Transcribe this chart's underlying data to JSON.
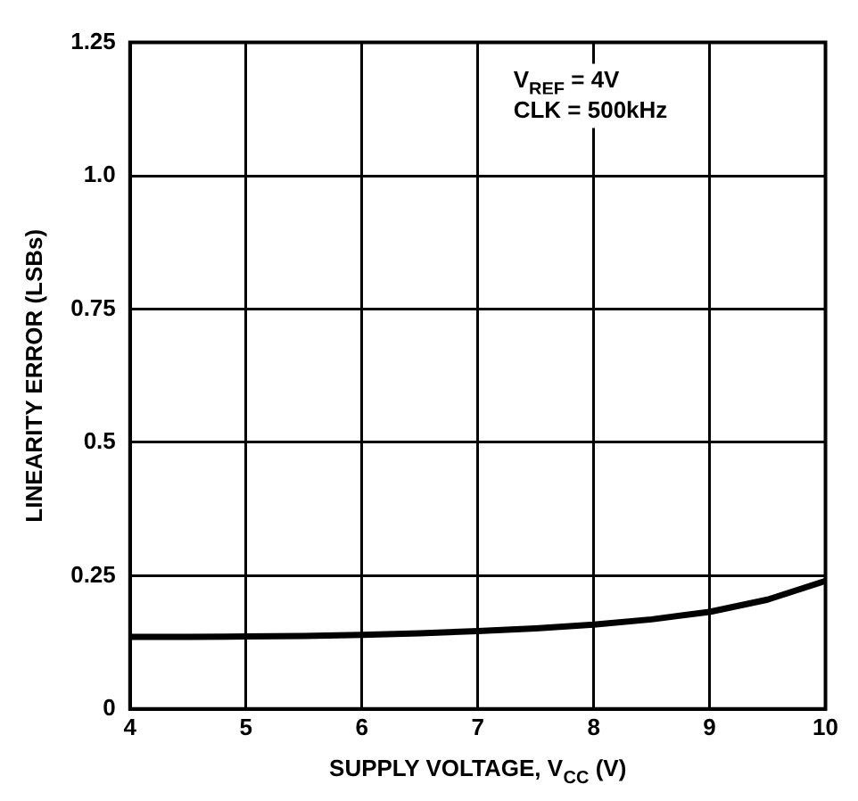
{
  "chart_data": {
    "type": "line",
    "xlabel": "SUPPLY VOLTAGE, V$_{CC}$ (V)",
    "ylabel": "LINEARITY ERROR (LSBs)",
    "annotations": [
      "V$_{REF}$ = 4V",
      "CLK = 500kHz"
    ],
    "x": [
      4,
      4.5,
      5,
      5.5,
      6,
      6.5,
      7,
      7.5,
      8,
      8.5,
      9,
      9.5,
      10
    ],
    "series": [
      {
        "color": "#000000",
        "values": [
          0.135,
          0.135,
          0.136,
          0.137,
          0.139,
          0.142,
          0.146,
          0.151,
          0.158,
          0.168,
          0.182,
          0.205,
          0.24
        ]
      }
    ],
    "xlim": [
      4,
      10
    ],
    "xticks": [
      4,
      5,
      6,
      7,
      8,
      9,
      10
    ],
    "ylim": [
      0,
      1.25
    ],
    "yticks": [
      0,
      0.25,
      {
        "value": 0.5,
        "label": "0.5"
      },
      0.75,
      {
        "value": 1,
        "label": "1.0"
      },
      1.25
    ],
    "grid": true,
    "legend": false,
    "marker": "none",
    "line_style": "solid"
  }
}
